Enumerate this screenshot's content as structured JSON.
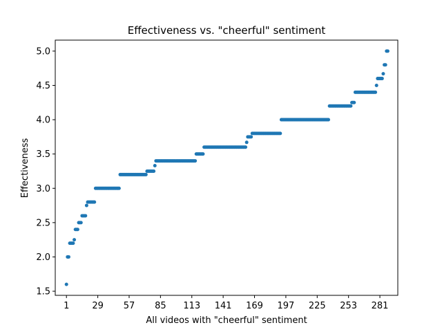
{
  "chart_data": {
    "type": "scatter",
    "title": "Effectiveness vs. \"cheerful\" sentiment",
    "xlabel": "All videos with \"cheerful\" sentiment",
    "ylabel": "Effectiveness",
    "xlim": [
      -9,
      297
    ],
    "ylim": [
      1.44,
      5.16
    ],
    "x_ticks": [
      1,
      29,
      57,
      85,
      113,
      141,
      169,
      197,
      225,
      253,
      281
    ],
    "y_ticks": [
      1.5,
      2.0,
      2.5,
      3.0,
      3.5,
      4.0,
      4.5,
      5.0
    ],
    "y_tick_labels": [
      "1.5",
      "2.0",
      "2.5",
      "3.0",
      "3.5",
      "4.0",
      "4.5",
      "5.0"
    ],
    "grid": false,
    "color": "#1f77b4",
    "marker_size": 5,
    "steps": [
      {
        "x_start": 1,
        "x_end": 1,
        "y": 1.6
      },
      {
        "x_start": 2,
        "x_end": 3,
        "y": 2.0
      },
      {
        "x_start": 4,
        "x_end": 7,
        "y": 2.2
      },
      {
        "x_start": 8,
        "x_end": 8,
        "y": 2.25
      },
      {
        "x_start": 9,
        "x_end": 11,
        "y": 2.4
      },
      {
        "x_start": 12,
        "x_end": 14,
        "y": 2.5
      },
      {
        "x_start": 15,
        "x_end": 18,
        "y": 2.6
      },
      {
        "x_start": 19,
        "x_end": 19,
        "y": 2.75
      },
      {
        "x_start": 20,
        "x_end": 26,
        "y": 2.8
      },
      {
        "x_start": 27,
        "x_end": 48,
        "y": 3.0
      },
      {
        "x_start": 49,
        "x_end": 72,
        "y": 3.2
      },
      {
        "x_start": 73,
        "x_end": 79,
        "y": 3.25
      },
      {
        "x_start": 80,
        "x_end": 80,
        "y": 3.33
      },
      {
        "x_start": 81,
        "x_end": 116,
        "y": 3.4
      },
      {
        "x_start": 117,
        "x_end": 123,
        "y": 3.5
      },
      {
        "x_start": 124,
        "x_end": 161,
        "y": 3.6
      },
      {
        "x_start": 162,
        "x_end": 162,
        "y": 3.67
      },
      {
        "x_start": 163,
        "x_end": 166,
        "y": 3.75
      },
      {
        "x_start": 167,
        "x_end": 192,
        "y": 3.8
      },
      {
        "x_start": 193,
        "x_end": 235,
        "y": 4.0
      },
      {
        "x_start": 236,
        "x_end": 255,
        "y": 4.2
      },
      {
        "x_start": 256,
        "x_end": 258,
        "y": 4.25
      },
      {
        "x_start": 259,
        "x_end": 277,
        "y": 4.4
      },
      {
        "x_start": 278,
        "x_end": 278,
        "y": 4.5
      },
      {
        "x_start": 279,
        "x_end": 283,
        "y": 4.6
      },
      {
        "x_start": 284,
        "x_end": 284,
        "y": 4.67
      },
      {
        "x_start": 285,
        "x_end": 286,
        "y": 4.8
      },
      {
        "x_start": 287,
        "x_end": 288,
        "y": 5.0
      }
    ]
  }
}
